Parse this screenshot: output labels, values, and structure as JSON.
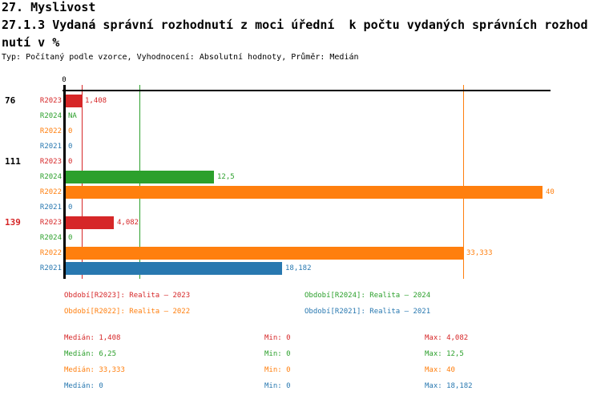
{
  "header": {
    "chapter": "27. Myslivost",
    "subtitle_line1": "27.1.3 Vydaná správní rozhodnutí z moci úřední  k počtu vydaných správních rozhod",
    "subtitle_line2": "nutí v %",
    "meta": "Typ: Počítaný podle vzorce, Vyhodnocení: Absolutní hodnoty, Průměr: Medián"
  },
  "colors": {
    "R2023": "#d62728",
    "R2024": "#2ca02c",
    "R2022": "#ff7f0e",
    "R2021": "#2878b0",
    "axis": "#000000",
    "group_label_default": "#000000"
  },
  "chart_data": {
    "type": "bar",
    "orientation": "horizontal",
    "axis": {
      "tick_label": "0",
      "xlim": [
        0,
        40.7
      ],
      "grid": "median-lines-only"
    },
    "groups": [
      {
        "label": "76",
        "label_color": "#000000",
        "bars": [
          {
            "series": "R2023",
            "value": 1.408,
            "label": "1,408"
          },
          {
            "series": "R2024",
            "value": null,
            "label": "NA"
          },
          {
            "series": "R2022",
            "value": 0,
            "label": "0"
          },
          {
            "series": "R2021",
            "value": 0,
            "label": "0"
          }
        ]
      },
      {
        "label": "111",
        "label_color": "#000000",
        "bars": [
          {
            "series": "R2023",
            "value": 0,
            "label": "0"
          },
          {
            "series": "R2024",
            "value": 12.5,
            "label": "12,5"
          },
          {
            "series": "R2022",
            "value": 40,
            "label": "40"
          },
          {
            "series": "R2021",
            "value": 0,
            "label": "0"
          }
        ]
      },
      {
        "label": "139",
        "label_color": "#d62728",
        "bars": [
          {
            "series": "R2023",
            "value": 4.082,
            "label": "4,082"
          },
          {
            "series": "R2024",
            "value": 0,
            "label": "0"
          },
          {
            "series": "R2022",
            "value": 33.333,
            "label": "33,333"
          },
          {
            "series": "R2021",
            "value": 18.182,
            "label": "18,182"
          }
        ]
      }
    ],
    "median_lines": [
      {
        "series": "R2023",
        "value": 1.408
      },
      {
        "series": "R2024",
        "value": 6.25
      },
      {
        "series": "R2022",
        "value": 33.333
      },
      {
        "series": "R2021",
        "value": 0
      }
    ]
  },
  "legend": {
    "items": [
      {
        "series": "R2023",
        "text": "Období[R2023]: Realita – 2023"
      },
      {
        "series": "R2024",
        "text": "Období[R2024]: Realita – 2024"
      },
      {
        "series": "R2022",
        "text": "Období[R2022]: Realita – 2022"
      },
      {
        "series": "R2021",
        "text": "Období[R2021]: Realita – 2021"
      }
    ]
  },
  "stats": {
    "median_label": "Medián",
    "min_label": "Min",
    "max_label": "Max",
    "rows": [
      {
        "series": "R2023",
        "median": "1,408",
        "min": "0",
        "max": "4,082"
      },
      {
        "series": "R2024",
        "median": "6,25",
        "min": "0",
        "max": "12,5"
      },
      {
        "series": "R2022",
        "median": "33,333",
        "min": "0",
        "max": "40"
      },
      {
        "series": "R2021",
        "median": "0",
        "min": "0",
        "max": "18,182"
      }
    ]
  }
}
